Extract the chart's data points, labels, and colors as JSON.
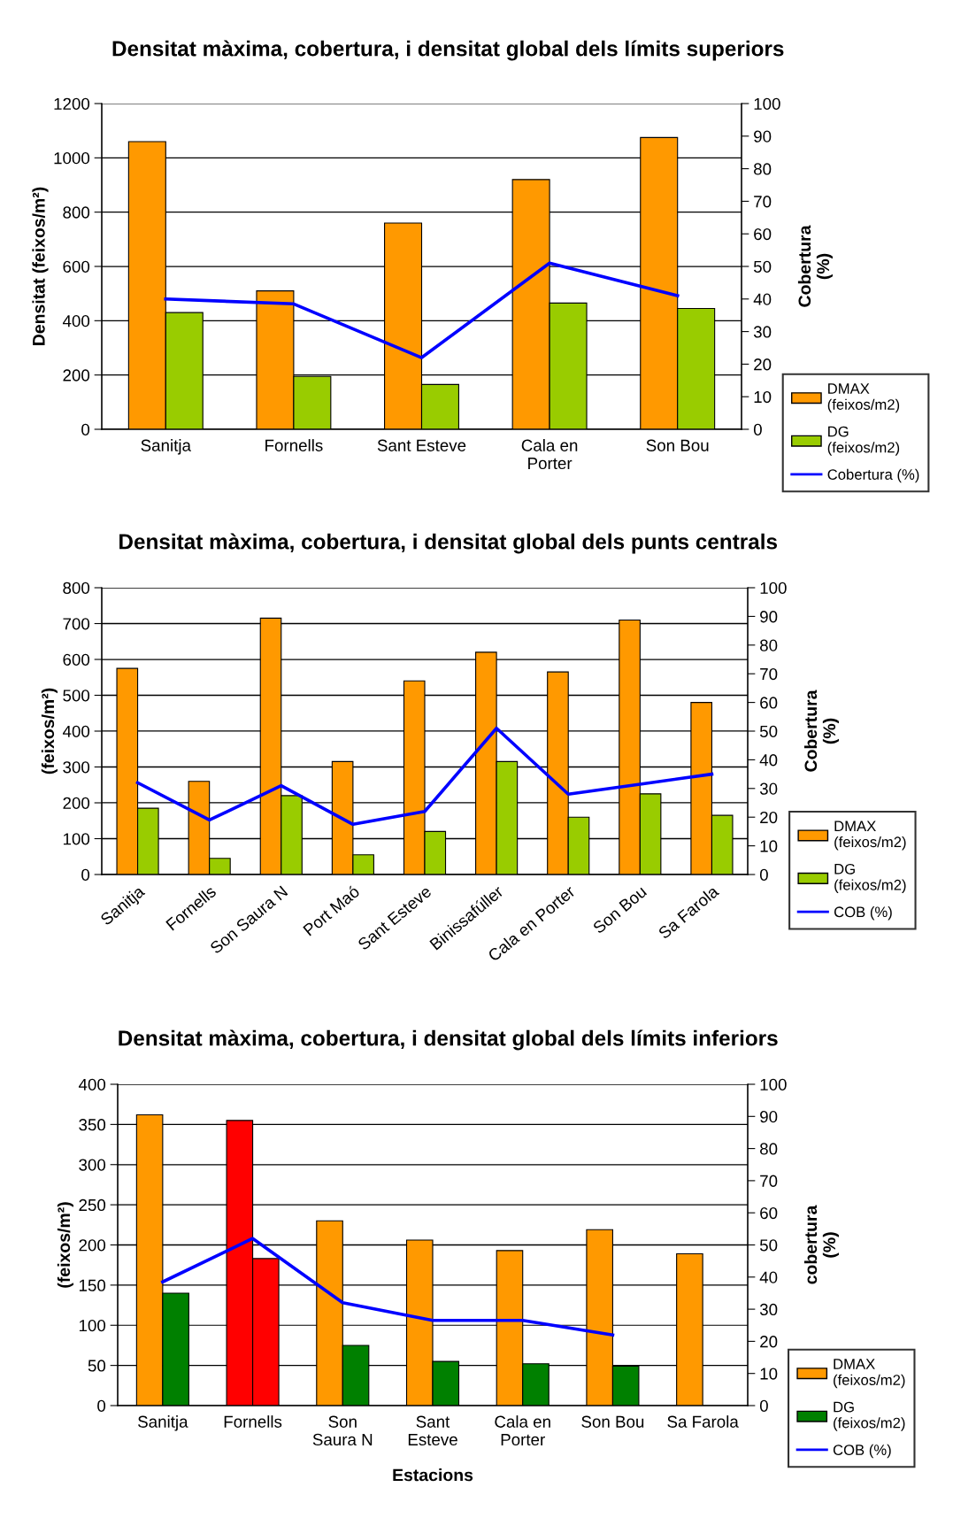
{
  "chart_data": [
    {
      "type": "bar",
      "title": "Densitat màxima, cobertura, i densitat global dels límits superiors",
      "ylabel": "Densitat (feixos/m²)",
      "y2label": "Cobertura\n(%)",
      "categories": [
        "Sanitja",
        "Fornells",
        "Sant Esteve",
        "Cala en\nPorter",
        "Son Bou"
      ],
      "series": [
        {
          "name": "DMAX\n(feixos/m2)",
          "color": "#ff9900",
          "values": [
            1060,
            510,
            760,
            920,
            1075
          ]
        },
        {
          "name": "DG\n(feixos/m2)",
          "color": "#99cc00",
          "values": [
            430,
            195,
            165,
            465,
            445
          ]
        },
        {
          "name": "Cobertura (%)",
          "type": "line",
          "axis": "y2",
          "color": "#0000ff",
          "values": [
            40,
            38.5,
            22,
            51,
            41
          ]
        }
      ],
      "ylim": [
        0,
        1200
      ],
      "yticks": [
        0,
        200,
        400,
        600,
        800,
        1000,
        1200
      ],
      "y2lim": [
        0,
        100
      ],
      "y2ticks": [
        0,
        10,
        20,
        30,
        40,
        50,
        60,
        70,
        80,
        90,
        100
      ],
      "grid": "y",
      "legend": "right",
      "marker": "none",
      "line_style": "solid"
    },
    {
      "type": "bar",
      "title": "Densitat màxima, cobertura, i densitat global dels punts centrals",
      "ylabel": "(feixos/m²)",
      "y2label": "Cobertura\n(%)",
      "categories": [
        "Sanitja",
        "Fornells",
        "Son Saura N",
        "Port Maó",
        "Sant Esteve",
        "Binissafúller",
        "Cala en Porter",
        "Son Bou",
        "Sa Farola"
      ],
      "series": [
        {
          "name": "DMAX\n(feixos/m2)",
          "color": "#ff9900",
          "values": [
            575,
            260,
            715,
            315,
            540,
            620,
            565,
            710,
            480
          ]
        },
        {
          "name": "DG\n(feixos/m2)",
          "color": "#99cc00",
          "values": [
            185,
            45,
            220,
            55,
            120,
            315,
            160,
            225,
            165
          ]
        },
        {
          "name": "COB (%)",
          "type": "line",
          "axis": "y2",
          "color": "#0000ff",
          "values": [
            32,
            19,
            31,
            17.5,
            22,
            51,
            28,
            31.5,
            35
          ]
        }
      ],
      "ylim": [
        0,
        800
      ],
      "yticks": [
        0,
        100,
        200,
        300,
        400,
        500,
        600,
        700,
        800
      ],
      "y2lim": [
        0,
        100
      ],
      "y2ticks": [
        0,
        10,
        20,
        30,
        40,
        50,
        60,
        70,
        80,
        90,
        100
      ],
      "grid": "y",
      "legend": "right",
      "marker": "none",
      "line_style": "solid"
    },
    {
      "type": "bar",
      "title": "Densitat màxima, cobertura, i densitat global dels límits inferiors",
      "xlabel": "Estacions",
      "ylabel": "(feixos/m²)",
      "y2label": "cobertura\n(%)",
      "categories": [
        "Sanitja",
        "Fornells",
        "Son\nSaura N",
        "Sant\nEsteve",
        "Cala en\nPorter",
        "Son Bou",
        "Sa Farola"
      ],
      "series": [
        {
          "name": "DMAX\n(feixos/m2)",
          "color": "#ff9900",
          "colors": [
            "#ff9900",
            "#ff0000",
            "#ff9900",
            "#ff9900",
            "#ff9900",
            "#ff9900",
            "#ff9900"
          ],
          "values": [
            362,
            355,
            230,
            206,
            193,
            219,
            189
          ]
        },
        {
          "name": "DG\n(feixos/m2)",
          "color": "#008000",
          "colors": [
            "#008000",
            "#ff0000",
            "#008000",
            "#008000",
            "#008000",
            "#008000",
            "#008000"
          ],
          "values": [
            140,
            183,
            75,
            55,
            52,
            49,
            null
          ]
        },
        {
          "name": "COB (%)",
          "type": "line",
          "axis": "y2",
          "color": "#0000ff",
          "values": [
            38.5,
            52,
            32,
            26.5,
            26.5,
            22,
            null
          ]
        }
      ],
      "ylim": [
        0,
        400
      ],
      "yticks": [
        0,
        50,
        100,
        150,
        200,
        250,
        300,
        350,
        400
      ],
      "y2lim": [
        0,
        100
      ],
      "y2ticks": [
        0,
        10,
        20,
        30,
        40,
        50,
        60,
        70,
        80,
        90,
        100
      ],
      "grid": "y",
      "legend": "right",
      "marker": "none",
      "line_style": "solid"
    }
  ]
}
